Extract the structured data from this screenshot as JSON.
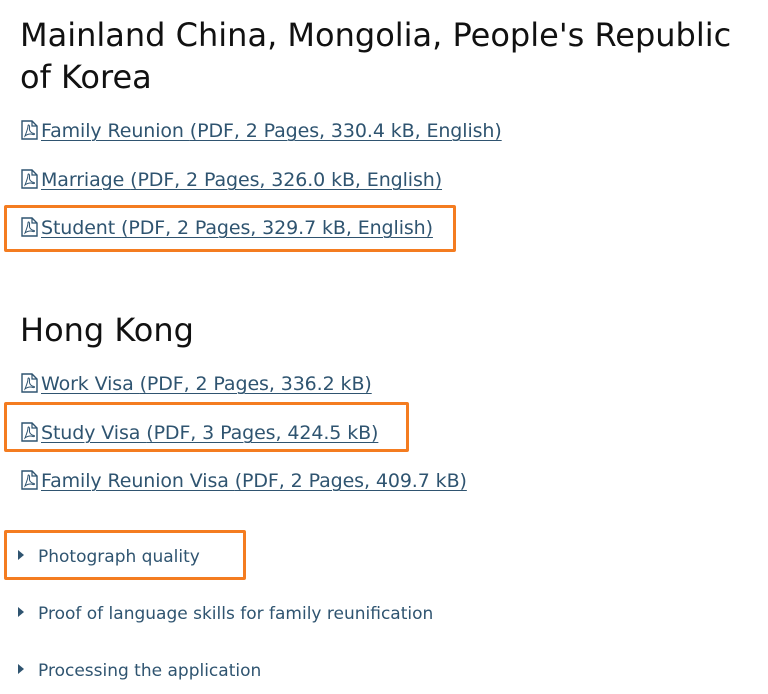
{
  "sections": [
    {
      "heading": "Mainland China, Mongolia, People's Republic of Korea",
      "links": [
        {
          "title": "Family Reunion ",
          "meta": "(PDF, 2 Pages, 330.4 kB, English)"
        },
        {
          "title": "Marriage ",
          "meta": "(PDF, 2 Pages, 326.0 kB, English)"
        },
        {
          "title": "Student ",
          "meta": "(PDF, 2 Pages, 329.7 kB, English)"
        }
      ]
    },
    {
      "heading": "Hong Kong",
      "links": [
        {
          "title": "Work Visa ",
          "meta": "(PDF, 2 Pages, 336.2 kB)"
        },
        {
          "title": "Study Visa ",
          "meta": "(PDF, 3 Pages, 424.5 kB)"
        },
        {
          "title": "Family Reunion Visa ",
          "meta": "(PDF, 2 Pages, 409.7 kB)"
        }
      ]
    }
  ],
  "accordions": [
    {
      "label": "Photograph quality"
    },
    {
      "label": "Proof of language skills for family reunification"
    },
    {
      "label": "Processing the application"
    }
  ],
  "colors": {
    "link": "#2f5470",
    "heading": "#111111",
    "highlight": "#f47c20"
  },
  "icons": {
    "pdf": "pdf-file-icon",
    "expand": "caret-right-icon"
  }
}
